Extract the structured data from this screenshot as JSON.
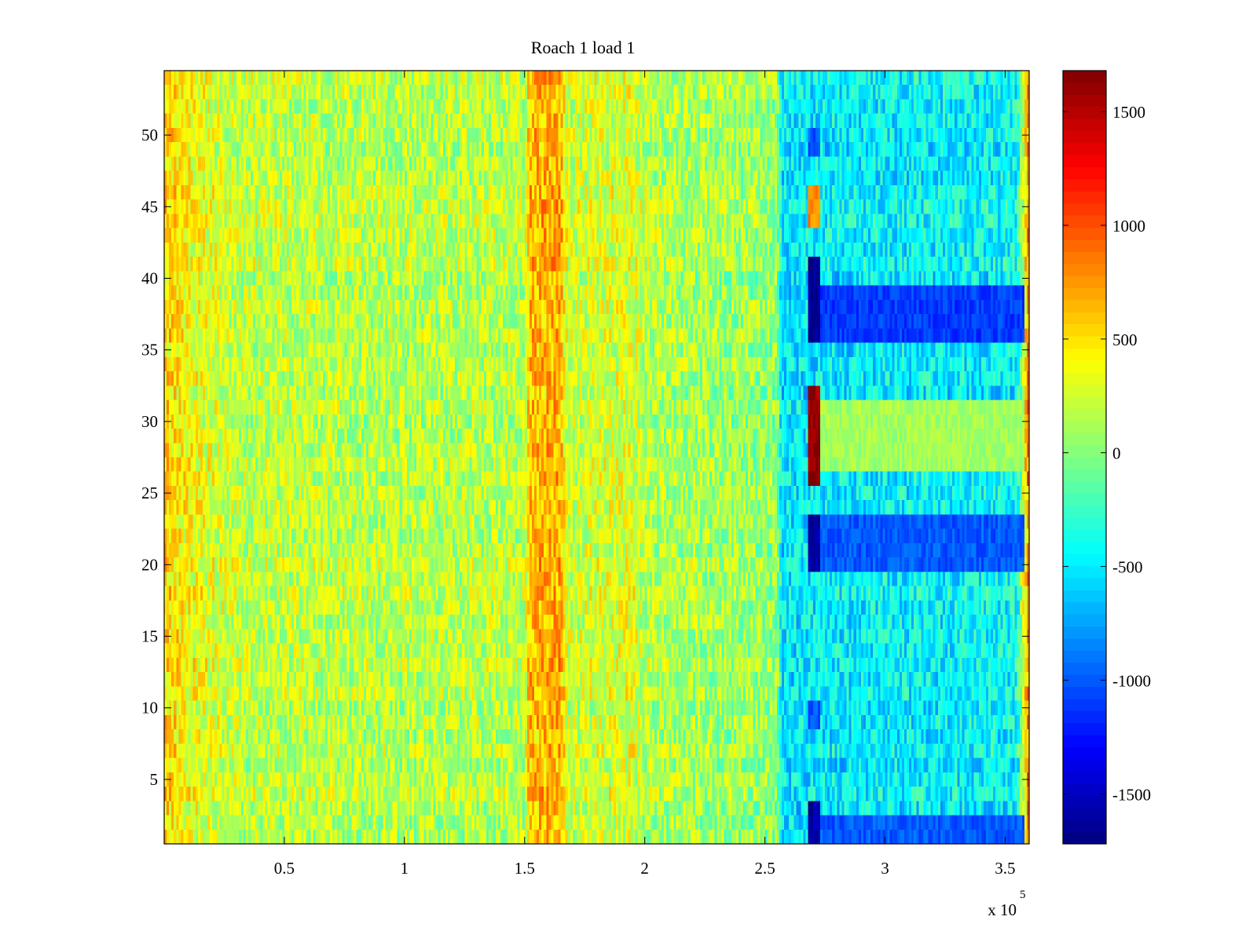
{
  "chart_data": {
    "type": "heatmap",
    "title": "Roach 1 load 1",
    "xlabel": "",
    "ylabel": "",
    "x_range": [
      0,
      360000
    ],
    "y_range": [
      0.5,
      54.5
    ],
    "n_rows": 54,
    "x_ticks": [
      50000,
      100000,
      150000,
      200000,
      250000,
      300000,
      350000
    ],
    "x_tick_labels": [
      "0.5",
      "1",
      "1.5",
      "2",
      "2.5",
      "3",
      "3.5"
    ],
    "x_exponent_label": "x 10",
    "x_exponent": "5",
    "y_ticks": [
      5,
      10,
      15,
      20,
      25,
      30,
      35,
      40,
      45,
      50
    ],
    "y_tick_labels": [
      "5",
      "10",
      "15",
      "20",
      "25",
      "30",
      "35",
      "40",
      "45",
      "50"
    ],
    "colorbar": {
      "colormap": "jet",
      "range": [
        -1720,
        1680
      ],
      "ticks": [
        1500,
        1000,
        500,
        0,
        -500,
        -1000,
        -1500
      ],
      "tick_labels": [
        "1500",
        "1000",
        "500",
        "0",
        "-500",
        "-1000",
        "-1500"
      ]
    },
    "baseline_by_x": [
      {
        "x": 0,
        "value": 550
      },
      {
        "x": 10000,
        "value": 380
      },
      {
        "x": 30000,
        "value": 200
      },
      {
        "x": 100000,
        "value": 150
      },
      {
        "x": 150000,
        "value": 180
      },
      {
        "x": 152000,
        "value": 640
      },
      {
        "x": 165000,
        "value": 680
      },
      {
        "x": 168000,
        "value": 220
      },
      {
        "x": 195000,
        "value": 300
      },
      {
        "x": 200000,
        "value": 150
      },
      {
        "x": 255000,
        "value": 40
      },
      {
        "x": 257000,
        "value": -520
      },
      {
        "x": 300000,
        "value": -480
      },
      {
        "x": 355000,
        "value": -450
      },
      {
        "x": 360000,
        "value": 900
      }
    ],
    "features": [
      {
        "x_from": 268000,
        "x_to": 273000,
        "y_from": 36,
        "y_to": 41,
        "value": -1650
      },
      {
        "x_from": 273000,
        "x_to": 358000,
        "y_from": 36,
        "y_to": 39,
        "value": -1100
      },
      {
        "x_from": 268000,
        "x_to": 273000,
        "y_from": 20,
        "y_to": 23,
        "value": -1600
      },
      {
        "x_from": 273000,
        "x_to": 358000,
        "y_from": 20,
        "y_to": 23,
        "value": -1000
      },
      {
        "x_from": 268000,
        "x_to": 273000,
        "y_from": 1,
        "y_to": 3,
        "value": -1600
      },
      {
        "x_from": 273000,
        "x_to": 358000,
        "y_from": 1,
        "y_to": 2,
        "value": -1000
      },
      {
        "x_from": 268000,
        "x_to": 273000,
        "y_from": 26,
        "y_to": 32,
        "value": 1600
      },
      {
        "x_from": 268000,
        "x_to": 273000,
        "y_from": 44,
        "y_to": 46,
        "value": 800
      },
      {
        "x_from": 268000,
        "x_to": 273000,
        "y_from": 49,
        "y_to": 50,
        "value": -1000
      },
      {
        "x_from": 268000,
        "x_to": 273000,
        "y_from": 9,
        "y_to": 10,
        "value": -1000
      },
      {
        "x_from": 273000,
        "x_to": 358000,
        "y_from": 27,
        "y_to": 31,
        "value": 100
      }
    ]
  }
}
